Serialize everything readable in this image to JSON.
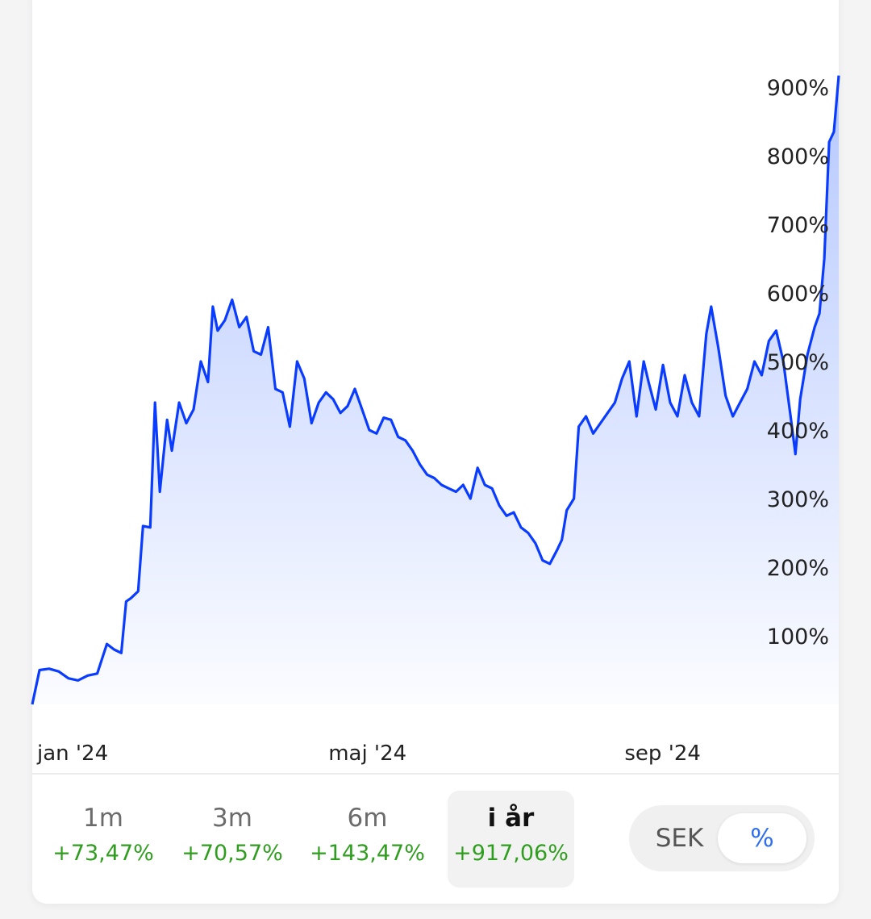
{
  "chart_data": {
    "type": "area",
    "y_unit": "%",
    "ylim": [
      0,
      920
    ],
    "yticks": [
      100,
      200,
      300,
      400,
      500,
      600,
      700,
      800,
      900
    ],
    "ytick_labels": [
      "100%",
      "200%",
      "300%",
      "400%",
      "500%",
      "600%",
      "700%",
      "800%",
      "900%"
    ],
    "xtick_labels": [
      {
        "label": "jan '24",
        "date": "2024-01-01"
      },
      {
        "label": "maj '24",
        "date": "2024-05-01"
      },
      {
        "label": "sep '24",
        "date": "2024-09-01"
      }
    ],
    "series": [
      {
        "color": "#0a3cff",
        "points": [
          [
            "2024-01-01",
            0
          ],
          [
            "2024-01-04",
            50
          ],
          [
            "2024-01-08",
            52
          ],
          [
            "2024-01-12",
            48
          ],
          [
            "2024-01-16",
            38
          ],
          [
            "2024-01-20",
            35
          ],
          [
            "2024-01-24",
            42
          ],
          [
            "2024-01-28",
            45
          ],
          [
            "2024-02-01",
            88
          ],
          [
            "2024-02-04",
            80
          ],
          [
            "2024-02-07",
            75
          ],
          [
            "2024-02-09",
            150
          ],
          [
            "2024-02-11",
            155
          ],
          [
            "2024-02-14",
            165
          ],
          [
            "2024-02-16",
            260
          ],
          [
            "2024-02-19",
            258
          ],
          [
            "2024-02-21",
            440
          ],
          [
            "2024-02-23",
            310
          ],
          [
            "2024-02-26",
            415
          ],
          [
            "2024-02-28",
            370
          ],
          [
            "2024-03-02",
            440
          ],
          [
            "2024-03-05",
            410
          ],
          [
            "2024-03-08",
            430
          ],
          [
            "2024-03-11",
            500
          ],
          [
            "2024-03-14",
            470
          ],
          [
            "2024-03-16",
            580
          ],
          [
            "2024-03-18",
            545
          ],
          [
            "2024-03-21",
            560
          ],
          [
            "2024-03-24",
            590
          ],
          [
            "2024-03-27",
            550
          ],
          [
            "2024-03-30",
            565
          ],
          [
            "2024-04-02",
            515
          ],
          [
            "2024-04-05",
            510
          ],
          [
            "2024-04-08",
            550
          ],
          [
            "2024-04-11",
            460
          ],
          [
            "2024-04-14",
            455
          ],
          [
            "2024-04-17",
            405
          ],
          [
            "2024-04-20",
            500
          ],
          [
            "2024-04-23",
            475
          ],
          [
            "2024-04-26",
            410
          ],
          [
            "2024-04-29",
            440
          ],
          [
            "2024-05-02",
            455
          ],
          [
            "2024-05-05",
            445
          ],
          [
            "2024-05-08",
            425
          ],
          [
            "2024-05-11",
            435
          ],
          [
            "2024-05-14",
            460
          ],
          [
            "2024-05-17",
            430
          ],
          [
            "2024-05-20",
            400
          ],
          [
            "2024-05-23",
            395
          ],
          [
            "2024-05-26",
            418
          ],
          [
            "2024-05-29",
            415
          ],
          [
            "2024-06-01",
            390
          ],
          [
            "2024-06-04",
            385
          ],
          [
            "2024-06-07",
            370
          ],
          [
            "2024-06-10",
            350
          ],
          [
            "2024-06-13",
            335
          ],
          [
            "2024-06-16",
            330
          ],
          [
            "2024-06-19",
            320
          ],
          [
            "2024-06-22",
            315
          ],
          [
            "2024-06-25",
            310
          ],
          [
            "2024-06-28",
            320
          ],
          [
            "2024-07-01",
            300
          ],
          [
            "2024-07-04",
            345
          ],
          [
            "2024-07-07",
            320
          ],
          [
            "2024-07-10",
            315
          ],
          [
            "2024-07-13",
            290
          ],
          [
            "2024-07-16",
            275
          ],
          [
            "2024-07-19",
            280
          ],
          [
            "2024-07-22",
            258
          ],
          [
            "2024-07-25",
            250
          ],
          [
            "2024-07-28",
            235
          ],
          [
            "2024-07-31",
            210
          ],
          [
            "2024-08-03",
            205
          ],
          [
            "2024-08-06",
            225
          ],
          [
            "2024-08-08",
            240
          ],
          [
            "2024-08-10",
            283
          ],
          [
            "2024-08-13",
            300
          ],
          [
            "2024-08-15",
            405
          ],
          [
            "2024-08-18",
            420
          ],
          [
            "2024-08-21",
            395
          ],
          [
            "2024-08-24",
            410
          ],
          [
            "2024-08-27",
            425
          ],
          [
            "2024-08-30",
            440
          ],
          [
            "2024-09-02",
            475
          ],
          [
            "2024-09-05",
            500
          ],
          [
            "2024-09-08",
            420
          ],
          [
            "2024-09-11",
            500
          ],
          [
            "2024-09-13",
            470
          ],
          [
            "2024-09-16",
            430
          ],
          [
            "2024-09-19",
            495
          ],
          [
            "2024-09-22",
            440
          ],
          [
            "2024-09-25",
            420
          ],
          [
            "2024-09-28",
            480
          ],
          [
            "2024-10-01",
            440
          ],
          [
            "2024-10-04",
            420
          ],
          [
            "2024-10-07",
            540
          ],
          [
            "2024-10-09",
            580
          ],
          [
            "2024-10-12",
            520
          ],
          [
            "2024-10-15",
            450
          ],
          [
            "2024-10-18",
            420
          ],
          [
            "2024-10-21",
            440
          ],
          [
            "2024-10-24",
            460
          ],
          [
            "2024-10-27",
            500
          ],
          [
            "2024-10-30",
            480
          ],
          [
            "2024-11-02",
            530
          ],
          [
            "2024-11-05",
            545
          ],
          [
            "2024-11-08",
            500
          ],
          [
            "2024-11-11",
            420
          ],
          [
            "2024-11-13",
            365
          ],
          [
            "2024-11-15",
            445
          ],
          [
            "2024-11-18",
            510
          ],
          [
            "2024-11-21",
            550
          ],
          [
            "2024-11-23",
            570
          ],
          [
            "2024-11-25",
            650
          ],
          [
            "2024-11-27",
            820
          ],
          [
            "2024-11-29",
            835
          ],
          [
            "2024-12-01",
            917
          ]
        ]
      }
    ]
  },
  "periods": [
    {
      "label": "1m",
      "change": "+73,47%",
      "selected": false
    },
    {
      "label": "3m",
      "change": "+70,57%",
      "selected": false
    },
    {
      "label": "6m",
      "change": "+143,47%",
      "selected": false
    },
    {
      "label": "i år",
      "change": "+917,06%",
      "selected": true
    }
  ],
  "toggle": {
    "left_label": "SEK",
    "right_label": "%",
    "active": "%"
  },
  "colors": {
    "line": "#0a3cff",
    "positive": "#2f9e1f",
    "toggle_active_text": "#2f6fed"
  }
}
